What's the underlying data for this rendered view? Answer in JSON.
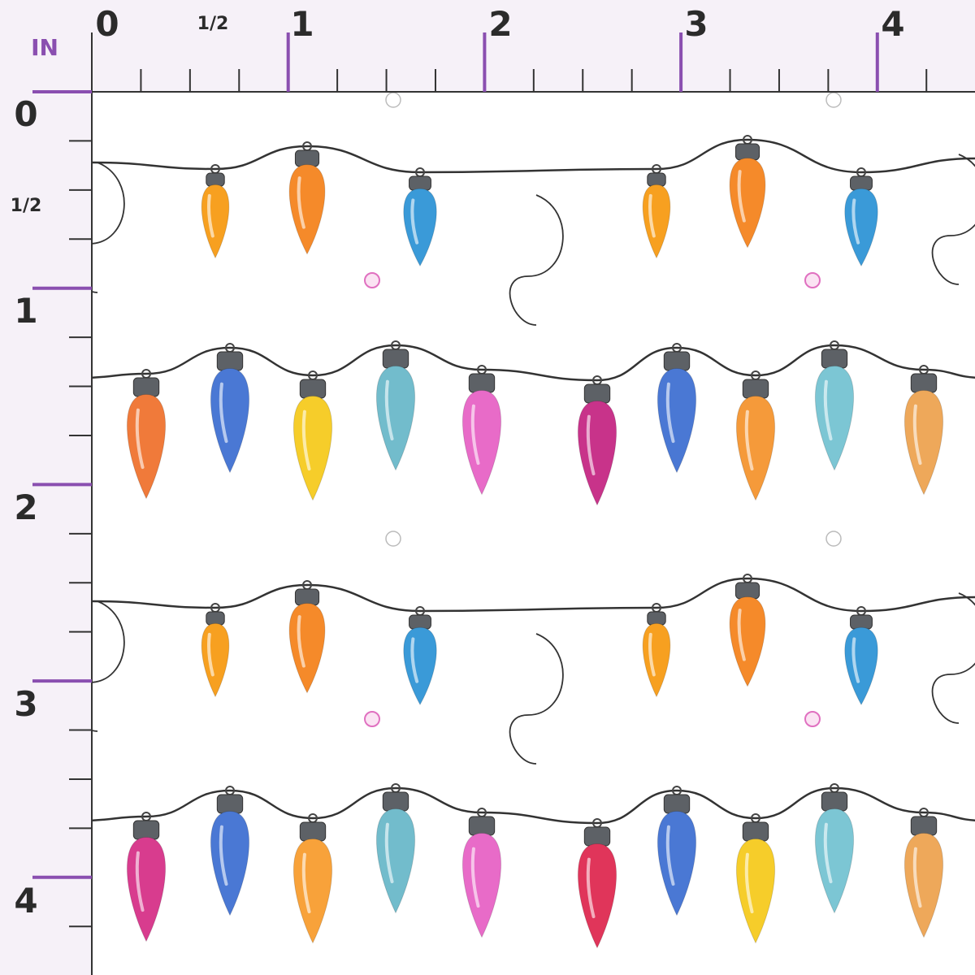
{
  "ruler": {
    "unit": "IN",
    "top_labels": [
      "0",
      "1/2",
      "1",
      "2",
      "3",
      "4"
    ],
    "left_labels": [
      "0",
      "1/2",
      "1",
      "2",
      "3",
      "4"
    ]
  }
}
